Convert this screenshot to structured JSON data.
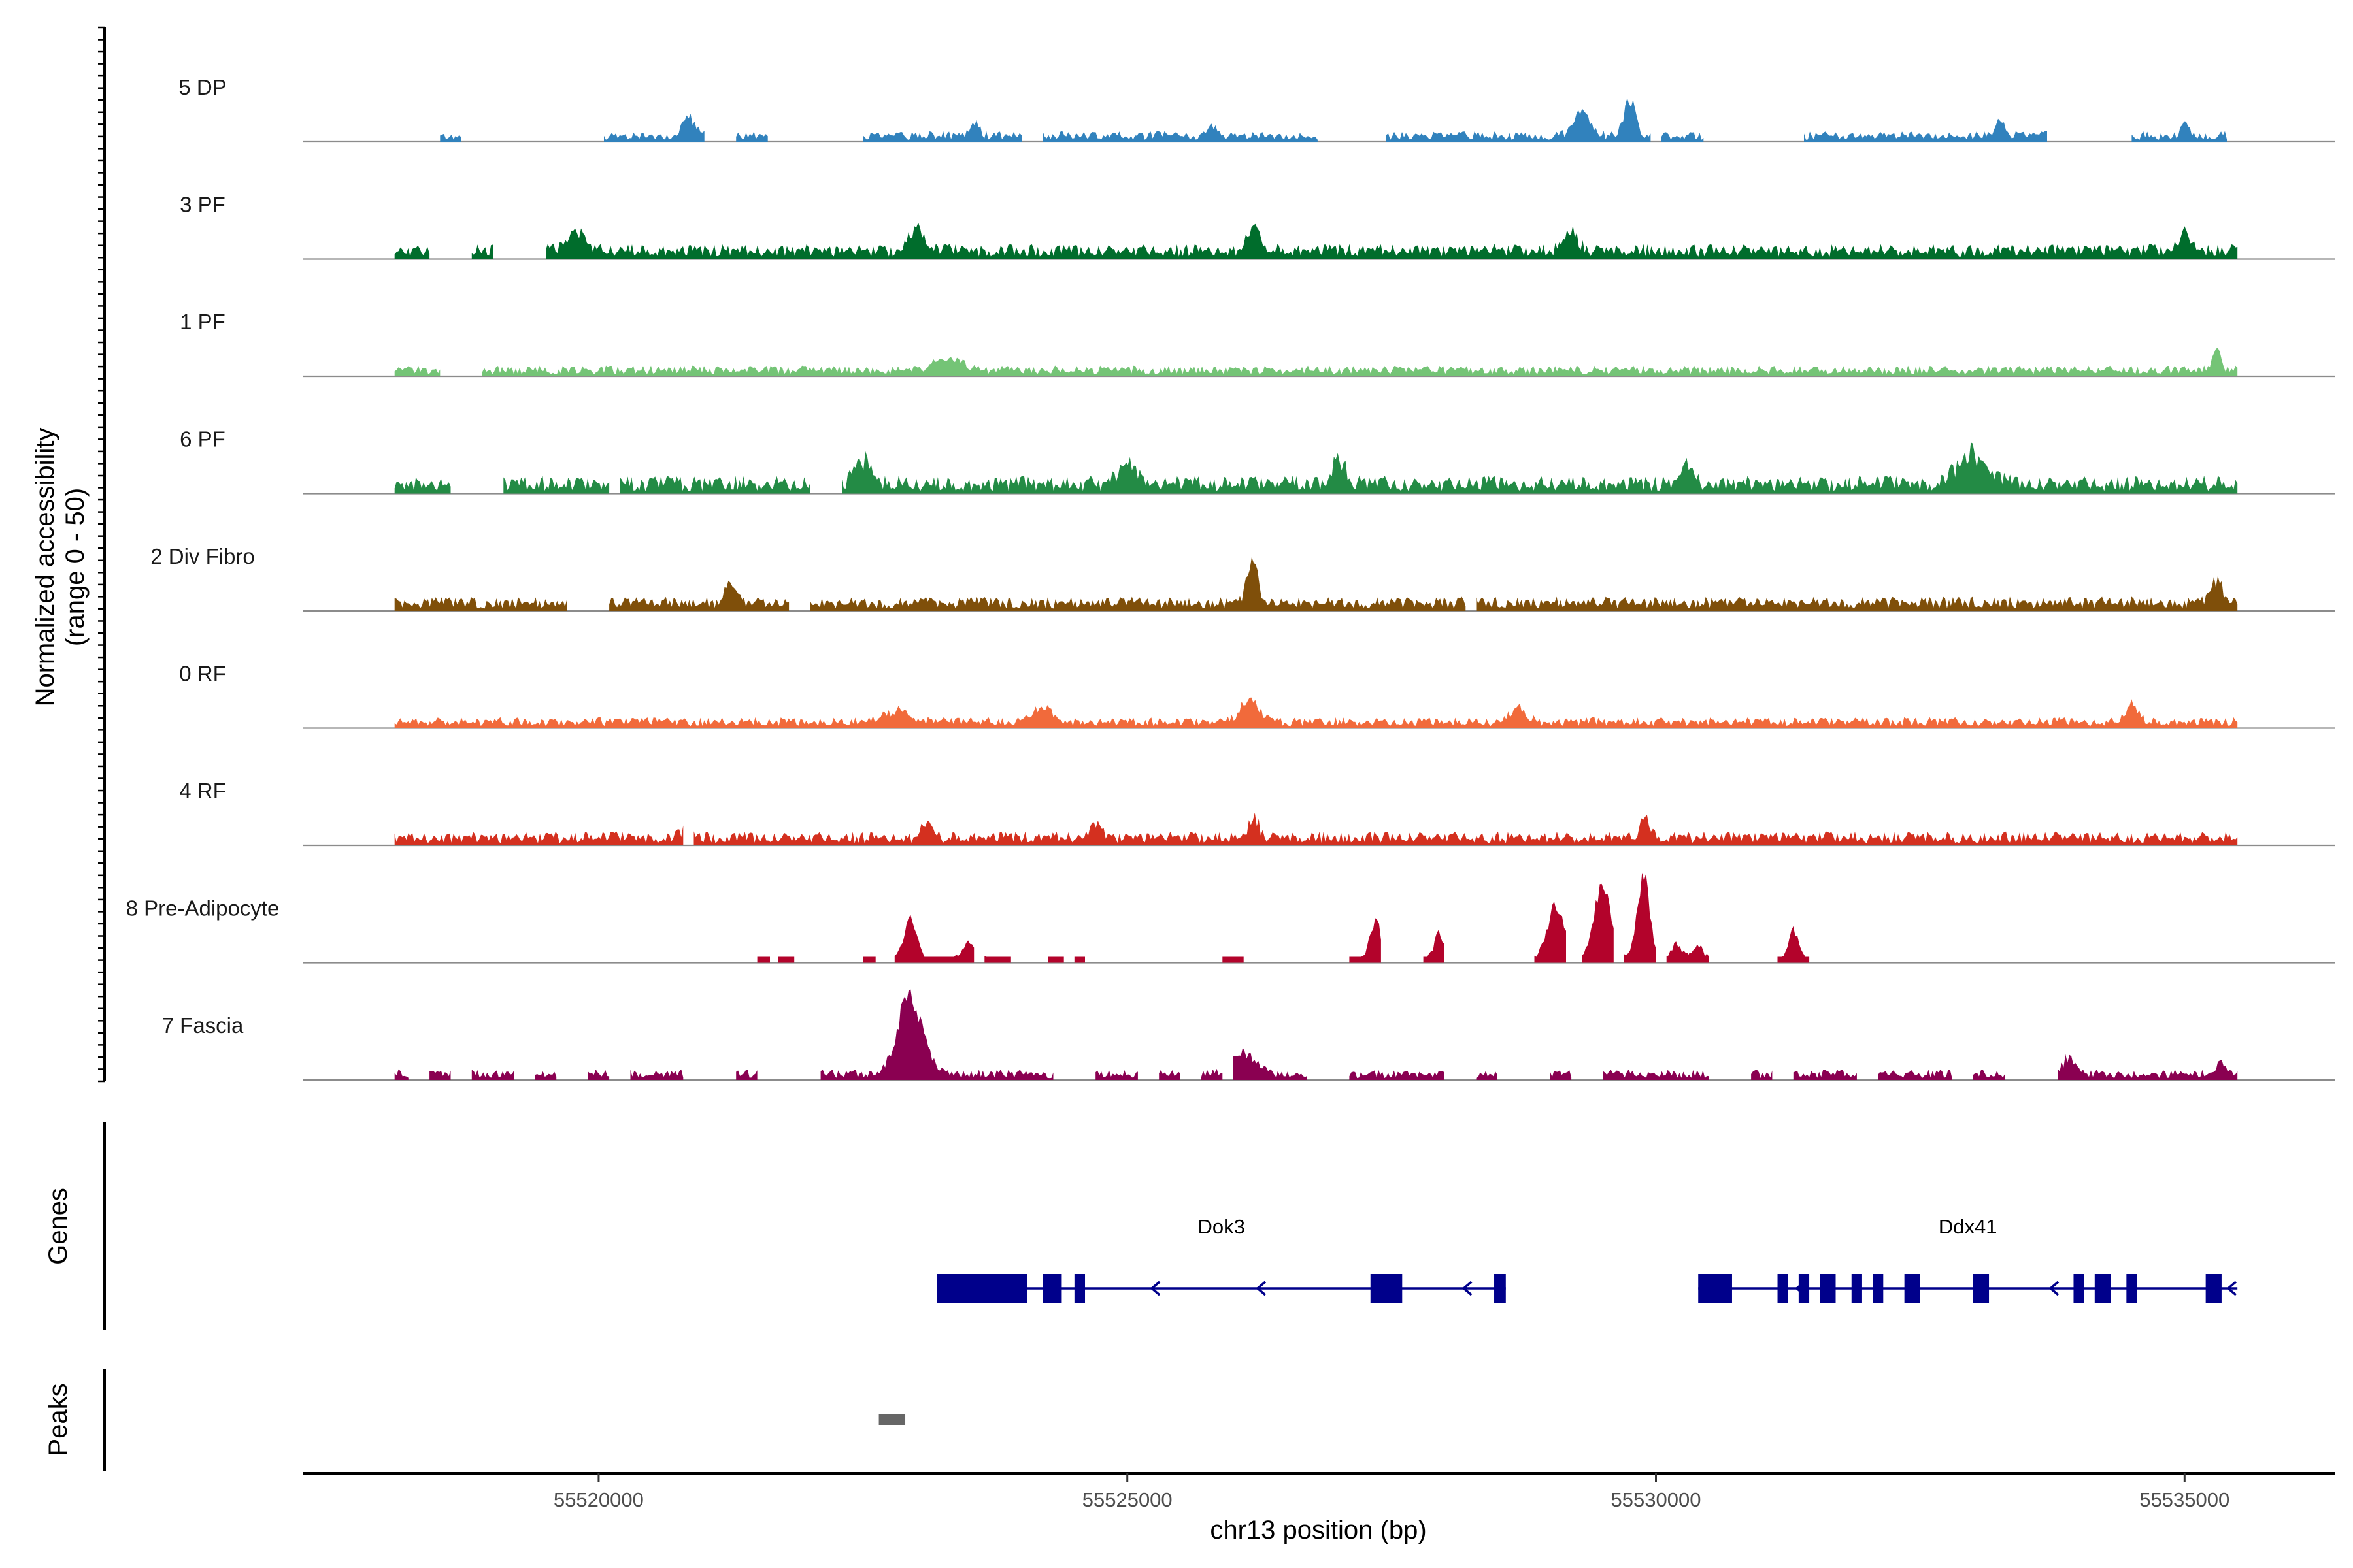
{
  "chart_data": {
    "type": "area",
    "subtype": "genome-coverage-tracks",
    "ylabel_line1": "Normalized accessibility",
    "ylabel_line2": "(range 0 - 50)",
    "ylim": [
      0,
      50
    ],
    "xlabel": "chr13 position (bp)",
    "xlim": [
      55517200,
      55536420
    ],
    "x_ticks": [
      55520000,
      55525000,
      55530000,
      55535000
    ],
    "x_tick_labels": [
      "55520000",
      "55525000",
      "55530000",
      "55535000"
    ],
    "data_range": [
      55518070,
      55535500
    ],
    "tracks": [
      {
        "name": "5 DP",
        "color": "#3182bd",
        "baseline": 0.5,
        "noise": 0.09,
        "peaks": [
          [
            55520850,
            0.22,
            80
          ],
          [
            55523550,
            0.14,
            60
          ],
          [
            55525800,
            0.12,
            60
          ],
          [
            55529300,
            0.28,
            100
          ],
          [
            55529750,
            0.4,
            70
          ],
          [
            55533250,
            0.15,
            60
          ],
          [
            55535000,
            0.12,
            50
          ]
        ],
        "segments": [
          [
            55518500,
            55518700
          ],
          [
            55520050,
            55521000
          ],
          [
            55521300,
            55521600
          ],
          [
            55522500,
            55524000
          ],
          [
            55524200,
            55526800
          ],
          [
            55527450,
            55529950
          ],
          [
            55530050,
            55530450
          ],
          [
            55531400,
            55533700
          ],
          [
            55534500,
            55535400
          ]
        ]
      },
      {
        "name": "3 PF",
        "color": "#006d2c",
        "baseline": 0.6,
        "noise": 0.13,
        "peaks": [
          [
            55519800,
            0.22,
            120
          ],
          [
            55523000,
            0.22,
            100
          ],
          [
            55526200,
            0.24,
            90
          ],
          [
            55529200,
            0.22,
            90
          ],
          [
            55535000,
            0.22,
            70
          ]
        ],
        "segments": [
          [
            55518070,
            55518400
          ],
          [
            55518800,
            55519000
          ],
          [
            55519500,
            55535500
          ]
        ]
      },
      {
        "name": "1 PF",
        "color": "#74c476",
        "baseline": 0.5,
        "noise": 0.09,
        "peaks": [
          [
            55523300,
            0.12,
            180
          ],
          [
            55535300,
            0.22,
            60
          ]
        ],
        "segments": [
          [
            55518070,
            55518500
          ],
          [
            55518900,
            55535500
          ]
        ]
      },
      {
        "name": "6 PF",
        "color": "#238b45",
        "baseline": 0.6,
        "noise": 0.16,
        "peaks": [
          [
            55522500,
            0.24,
            110
          ],
          [
            55525000,
            0.22,
            120
          ],
          [
            55527000,
            0.22,
            90
          ],
          [
            55533000,
            0.3,
            200
          ],
          [
            55530300,
            0.2,
            80
          ]
        ],
        "segments": [
          [
            55518070,
            55518600
          ],
          [
            55519100,
            55520100
          ],
          [
            55520200,
            55522000
          ],
          [
            55522300,
            55535500
          ]
        ]
      },
      {
        "name": "2 Div Fibro",
        "color": "#7f4f0a",
        "baseline": 0.6,
        "noise": 0.12,
        "peaks": [
          [
            55521250,
            0.18,
            80
          ],
          [
            55526180,
            0.45,
            70
          ],
          [
            55535300,
            0.22,
            80
          ]
        ],
        "segments": [
          [
            55518070,
            55519700
          ],
          [
            55520100,
            55521800
          ],
          [
            55522000,
            55528200
          ],
          [
            55528300,
            55535500
          ]
        ]
      },
      {
        "name": "0 RF",
        "color": "#f16a3b",
        "baseline": 0.55,
        "noise": 0.09,
        "peaks": [
          [
            55522800,
            0.12,
            180
          ],
          [
            55524200,
            0.14,
            120
          ],
          [
            55526150,
            0.22,
            120
          ],
          [
            55528700,
            0.15,
            100
          ],
          [
            55534500,
            0.18,
            80
          ]
        ],
        "segments": [
          [
            55518070,
            55535500
          ]
        ]
      },
      {
        "name": "4 RF",
        "color": "#d4301f",
        "baseline": 0.55,
        "noise": 0.12,
        "peaks": [
          [
            55520850,
            0.12,
            80
          ],
          [
            55523100,
            0.16,
            70
          ],
          [
            55524700,
            0.14,
            80
          ],
          [
            55526200,
            0.2,
            70
          ],
          [
            55529900,
            0.16,
            80
          ]
        ],
        "segments": [
          [
            55518070,
            55520800
          ],
          [
            55520900,
            55535500
          ]
        ]
      },
      {
        "name": "8 Pre-Adipocyte",
        "color": "#b3032b",
        "baseline": 0.0,
        "noise": 0.05,
        "peaks": [
          [
            55522950,
            0.42,
            90
          ],
          [
            55523500,
            0.22,
            90
          ],
          [
            55527350,
            0.38,
            80
          ],
          [
            55527950,
            0.28,
            70
          ],
          [
            55529050,
            0.62,
            110
          ],
          [
            55529500,
            0.74,
            120
          ],
          [
            55529880,
            0.8,
            90
          ],
          [
            55530200,
            0.16,
            80
          ],
          [
            55530400,
            0.16,
            70
          ],
          [
            55531300,
            0.3,
            70
          ]
        ],
        "segments": [
          [
            55521500,
            55521620
          ],
          [
            55521700,
            55521850
          ],
          [
            55522500,
            55522620
          ],
          [
            55522800,
            55523550
          ],
          [
            55523650,
            55523900
          ],
          [
            55524250,
            55524400
          ],
          [
            55524500,
            55524600
          ],
          [
            55525900,
            55526100
          ],
          [
            55527100,
            55527400
          ],
          [
            55527800,
            55528000
          ],
          [
            55528850,
            55529150
          ],
          [
            55529300,
            55529600
          ],
          [
            55529700,
            55530000
          ],
          [
            55530100,
            55530300
          ],
          [
            55530300,
            55530500
          ],
          [
            55531150,
            55531450
          ]
        ]
      },
      {
        "name": "7 Fascia",
        "color": "#8a0051",
        "baseline": 0.45,
        "noise": 0.09,
        "peaks": [
          [
            55522950,
            0.85,
            160
          ],
          [
            55526100,
            0.22,
            160
          ],
          [
            55533900,
            0.14,
            90
          ],
          [
            55535350,
            0.13,
            60
          ]
        ],
        "segments": [
          [
            55518070,
            55518200
          ],
          [
            55518400,
            55518600
          ],
          [
            55518800,
            55519200
          ],
          [
            55519400,
            55519600
          ],
          [
            55519900,
            55520100
          ],
          [
            55520300,
            55520800
          ],
          [
            55521300,
            55521500
          ],
          [
            55522100,
            55524300
          ],
          [
            55524700,
            55525100
          ],
          [
            55525300,
            55525500
          ],
          [
            55525700,
            55525900
          ],
          [
            55526000,
            55526700
          ],
          [
            55527100,
            55528000
          ],
          [
            55528300,
            55528500
          ],
          [
            55529000,
            55529200
          ],
          [
            55529500,
            55530500
          ],
          [
            55530900,
            55531100
          ],
          [
            55531300,
            55531900
          ],
          [
            55532100,
            55532800
          ],
          [
            55533000,
            55533300
          ],
          [
            55533800,
            55535500
          ]
        ]
      }
    ],
    "genes_track_label": "Genes",
    "genes": [
      {
        "name": "Dok3",
        "strand": "-",
        "start": 55523200,
        "end": 55528580,
        "exons": [
          [
            55523200,
            55524050
          ],
          [
            55524200,
            55524380
          ],
          [
            55524500,
            55524600
          ],
          [
            55527300,
            55527600
          ],
          [
            55528470,
            55528580
          ]
        ],
        "arrows": [
          55525250,
          55526250,
          55527400,
          55528200
        ]
      },
      {
        "name": "Ddx41",
        "strand": "-",
        "start": 55530400,
        "end": 55535500,
        "exons": [
          [
            55530400,
            55530720
          ],
          [
            55531150,
            55531250
          ],
          [
            55531350,
            55531450
          ],
          [
            55531550,
            55531700
          ],
          [
            55531850,
            55531950
          ],
          [
            55532050,
            55532150
          ],
          [
            55532350,
            55532500
          ],
          [
            55533000,
            55533150
          ],
          [
            55533950,
            55534050
          ],
          [
            55534150,
            55534300
          ],
          [
            55534450,
            55534550
          ],
          [
            55535200,
            55535350
          ]
        ],
        "arrows": [
          55531350,
          55533750,
          55535430
        ]
      }
    ],
    "gene_color": "#00008b",
    "peaks_track_label": "Peaks",
    "peak_regions": [
      [
        55522650,
        55522900
      ]
    ],
    "peak_color": "#666666"
  }
}
